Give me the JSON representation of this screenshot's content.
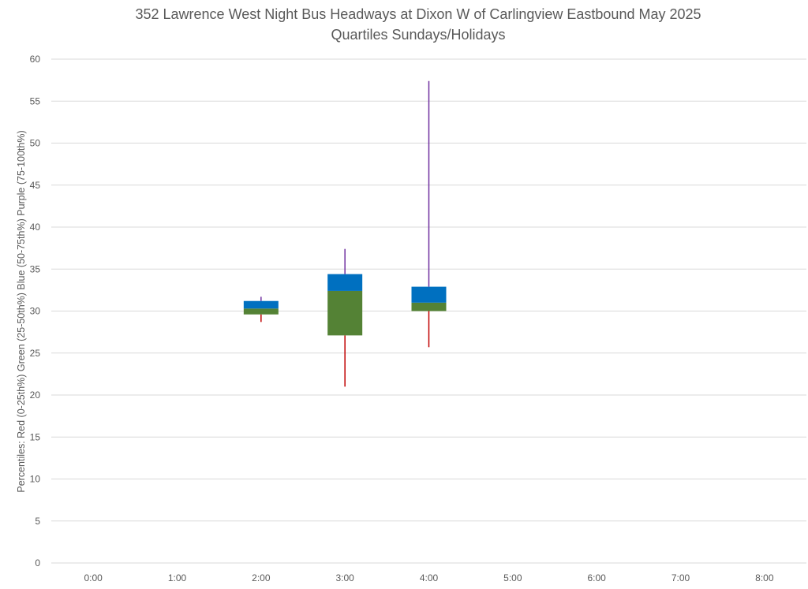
{
  "chart_data": {
    "type": "boxplot",
    "title": "352 Lawrence West Night Bus Headways at Dixon W of Carlingview Eastbound May 2025",
    "subtitle": "Quartiles Sundays/Holidays",
    "xlabel": "",
    "ylabel": "Percentiles:  Red (0-25th%)  Green (25-50th%)  Blue (50-75th%)  Purple (75-100th%)",
    "ylim": [
      0,
      60
    ],
    "yticks": [
      0,
      5,
      10,
      15,
      20,
      25,
      30,
      35,
      40,
      45,
      50,
      55,
      60
    ],
    "grid": true,
    "categories": [
      "0:00",
      "1:00",
      "2:00",
      "3:00",
      "4:00",
      "5:00",
      "6:00",
      "7:00",
      "8:00"
    ],
    "series": [
      {
        "category": "2:00",
        "min": 28.7,
        "q1": 29.6,
        "median": 30.3,
        "q3": 31.2,
        "max": 31.7
      },
      {
        "category": "3:00",
        "min": 21.0,
        "q1": 27.1,
        "median": 32.4,
        "q3": 34.4,
        "max": 37.4
      },
      {
        "category": "4:00",
        "min": 25.7,
        "q1": 30.0,
        "median": 31.0,
        "q3": 32.9,
        "max": 57.4
      }
    ],
    "colors": {
      "low_whisker": "#C00000",
      "lower_box": "#548235",
      "upper_box": "#0070C0",
      "high_whisker": "#7030A0",
      "grid": "#D9D9D9"
    }
  }
}
